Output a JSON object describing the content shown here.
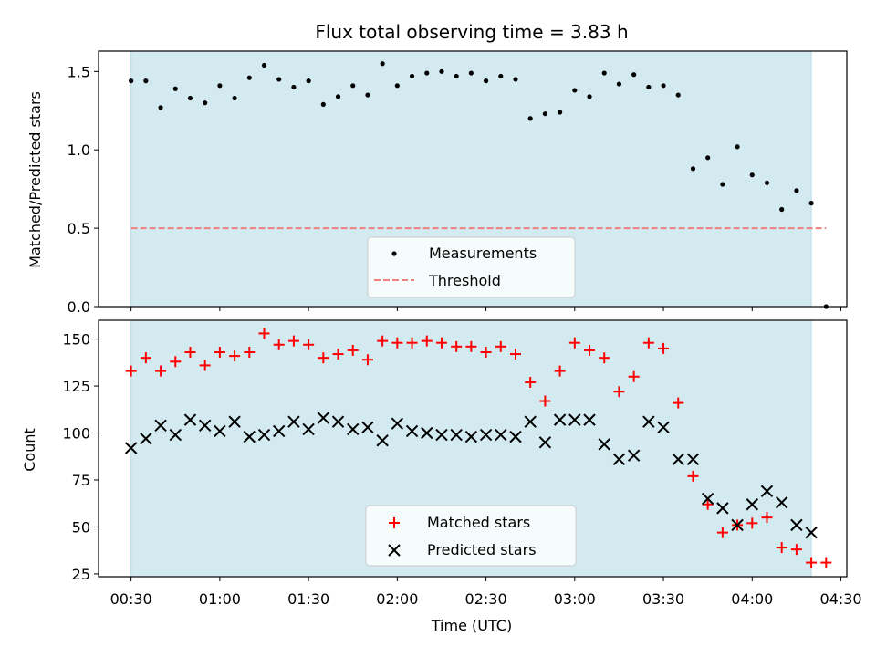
{
  "chart_data": [
    {
      "type": "scatter",
      "title": "Flux total observing time = 3.83 h",
      "ylabel": "Matched/Predicted stars",
      "xlabel": "",
      "ylim": [
        0,
        1.63
      ],
      "xlim": [
        "00:19",
        "04:32"
      ],
      "yticks": [
        "0.0",
        "0.5",
        "1.0",
        "1.5"
      ],
      "shaded_span": [
        "00:30",
        "04:20"
      ],
      "shade_color": "#d3eaf0",
      "series": [
        {
          "name": "Measurements",
          "marker": "dot",
          "color": "#000000",
          "x": [
            "00:30",
            "00:35",
            "00:40",
            "00:45",
            "00:50",
            "00:55",
            "01:00",
            "01:05",
            "01:10",
            "01:15",
            "01:20",
            "01:25",
            "01:30",
            "01:35",
            "01:40",
            "01:45",
            "01:50",
            "01:55",
            "02:00",
            "02:05",
            "02:10",
            "02:15",
            "02:20",
            "02:25",
            "02:30",
            "02:35",
            "02:40",
            "02:45",
            "02:50",
            "02:55",
            "03:00",
            "03:05",
            "03:10",
            "03:15",
            "03:20",
            "03:25",
            "03:30",
            "03:35",
            "03:40",
            "03:45",
            "03:50",
            "03:55",
            "04:00",
            "04:05",
            "04:10",
            "04:15",
            "04:20",
            "04:25"
          ],
          "values": [
            1.44,
            1.44,
            1.27,
            1.39,
            1.33,
            1.3,
            1.41,
            1.33,
            1.46,
            1.54,
            1.45,
            1.4,
            1.44,
            1.29,
            1.34,
            1.41,
            1.35,
            1.55,
            1.41,
            1.47,
            1.49,
            1.5,
            1.47,
            1.49,
            1.44,
            1.47,
            1.45,
            1.2,
            1.23,
            1.24,
            1.38,
            1.34,
            1.49,
            1.42,
            1.48,
            1.4,
            1.41,
            1.35,
            0.88,
            0.95,
            0.78,
            1.02,
            0.84,
            0.79,
            0.62,
            0.74,
            0.66,
            0.0
          ]
        },
        {
          "name": "Threshold",
          "style": "dashed",
          "color": "#f08080",
          "x": [
            "00:30",
            "04:25"
          ],
          "values": [
            0.5,
            0.5
          ]
        }
      ],
      "legend": "lower-center"
    },
    {
      "type": "scatter",
      "title": "",
      "ylabel": "Count",
      "xlabel": "Time (UTC)",
      "ylim": [
        23.5,
        160
      ],
      "xlim": [
        "00:19",
        "04:32"
      ],
      "yticks": [
        "25",
        "50",
        "75",
        "100",
        "125",
        "150"
      ],
      "xticks": [
        "00:30",
        "01:00",
        "01:30",
        "02:00",
        "02:30",
        "03:00",
        "03:30",
        "04:00",
        "04:30"
      ],
      "shaded_span": [
        "00:30",
        "04:20"
      ],
      "shade_color": "#d3eaf0",
      "series": [
        {
          "name": "Matched stars",
          "marker": "plus",
          "color": "#ff0000",
          "x": [
            "00:30",
            "00:35",
            "00:40",
            "00:45",
            "00:50",
            "00:55",
            "01:00",
            "01:05",
            "01:10",
            "01:15",
            "01:20",
            "01:25",
            "01:30",
            "01:35",
            "01:40",
            "01:45",
            "01:50",
            "01:55",
            "02:00",
            "02:05",
            "02:10",
            "02:15",
            "02:20",
            "02:25",
            "02:30",
            "02:35",
            "02:40",
            "02:45",
            "02:50",
            "02:55",
            "03:00",
            "03:05",
            "03:10",
            "03:15",
            "03:20",
            "03:25",
            "03:30",
            "03:35",
            "03:40",
            "03:45",
            "03:50",
            "03:55",
            "04:00",
            "04:05",
            "04:10",
            "04:15",
            "04:20",
            "04:25"
          ],
          "values": [
            133,
            140,
            133,
            138,
            143,
            136,
            143,
            141,
            143,
            153,
            147,
            149,
            147,
            140,
            142,
            144,
            139,
            149,
            148,
            148,
            149,
            148,
            146,
            146,
            143,
            146,
            142,
            127,
            117,
            133,
            148,
            144,
            140,
            122,
            130,
            148,
            145,
            116,
            77,
            62,
            47,
            51,
            52,
            55,
            39,
            38,
            31,
            31
          ]
        },
        {
          "name": "Predicted stars",
          "marker": "x",
          "color": "#000000",
          "x": [
            "00:30",
            "00:35",
            "00:40",
            "00:45",
            "00:50",
            "00:55",
            "01:00",
            "01:05",
            "01:10",
            "01:15",
            "01:20",
            "01:25",
            "01:30",
            "01:35",
            "01:40",
            "01:45",
            "01:50",
            "01:55",
            "02:00",
            "02:05",
            "02:10",
            "02:15",
            "02:20",
            "02:25",
            "02:30",
            "02:35",
            "02:40",
            "02:45",
            "02:50",
            "02:55",
            "03:00",
            "03:05",
            "03:10",
            "03:15",
            "03:20",
            "03:25",
            "03:30",
            "03:35",
            "03:40",
            "03:45",
            "03:50",
            "03:55",
            "04:00",
            "04:05",
            "04:10",
            "04:15",
            "04:20"
          ],
          "values": [
            92,
            97,
            104,
            99,
            107,
            104,
            101,
            106,
            98,
            99,
            101,
            106,
            102,
            108,
            106,
            102,
            103,
            96,
            105,
            101,
            100,
            99,
            99,
            98,
            99,
            99,
            98,
            106,
            95,
            107,
            107,
            107,
            94,
            86,
            88,
            106,
            103,
            86,
            86,
            65,
            60,
            51,
            62,
            69,
            63,
            51,
            47
          ]
        }
      ],
      "legend": "lower-center"
    }
  ]
}
